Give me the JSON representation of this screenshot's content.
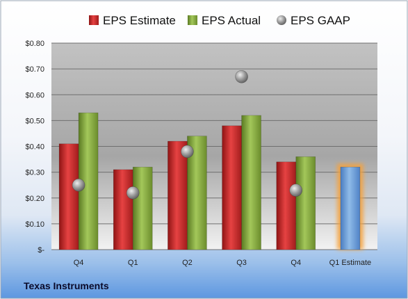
{
  "chart_data": {
    "type": "bar",
    "categories": [
      "Q4",
      "Q1",
      "Q2",
      "Q3",
      "Q4",
      "Q1 Estimate"
    ],
    "series": [
      {
        "name": "EPS Estimate",
        "kind": "bar",
        "color": "#d42a2a",
        "values": [
          0.41,
          0.31,
          0.42,
          0.48,
          0.34,
          null
        ]
      },
      {
        "name": "EPS Actual",
        "kind": "bar",
        "color": "#86ac3c",
        "values": [
          0.53,
          0.32,
          0.44,
          0.52,
          0.36,
          null
        ]
      },
      {
        "name": "EPS GAAP",
        "kind": "marker",
        "color": "#9a9a9a",
        "values": [
          0.25,
          0.22,
          0.38,
          0.67,
          0.23,
          null
        ]
      },
      {
        "kind": "bar",
        "color": "#6a9ed8",
        "highlight": "#f4a23c",
        "values": [
          null,
          null,
          null,
          null,
          null,
          0.32
        ]
      }
    ],
    "y_tick_labels": [
      "$-",
      "$0.10",
      "$0.20",
      "$0.30",
      "$0.40",
      "$0.50",
      "$0.60",
      "$0.70",
      "$0.80"
    ],
    "ylim": [
      0,
      0.8
    ],
    "legend_position": "top",
    "grid": true,
    "footer_label": "Texas Instruments"
  }
}
